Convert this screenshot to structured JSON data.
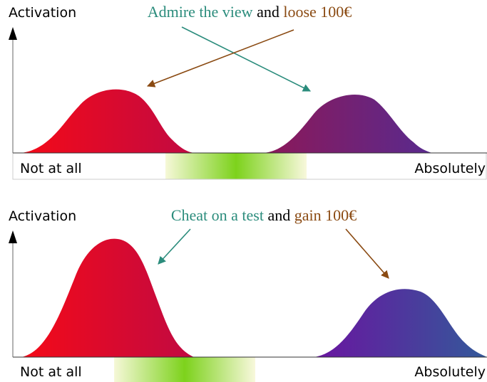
{
  "panels": [
    {
      "y_label": "Activation",
      "x_left": "Not at all",
      "x_right": "Absolutely",
      "title": {
        "option_a": "Admire the view",
        "joiner": "and",
        "option_b": "loose 100€"
      }
    },
    {
      "y_label": "Activation",
      "x_left": "Not at all",
      "x_right": "Absolutely",
      "title": {
        "option_a": "Cheat on a test",
        "joiner": "and",
        "option_b": "gain 100€"
      }
    }
  ]
}
